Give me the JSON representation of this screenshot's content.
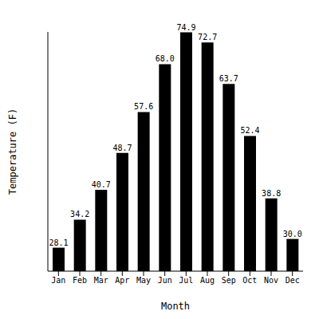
{
  "chart_data": {
    "type": "bar",
    "x_label": "Month",
    "y_label": "Temperature (F)",
    "categories": [
      "Jan",
      "Feb",
      "Mar",
      "Apr",
      "May",
      "Jun",
      "Jul",
      "Aug",
      "Sep",
      "Oct",
      "Nov",
      "Dec"
    ],
    "values": [
      28.1,
      34.2,
      40.7,
      48.7,
      57.6,
      68.0,
      74.9,
      72.7,
      63.7,
      52.4,
      38.8,
      30.0
    ],
    "value_labels": [
      "28.1",
      "34.2",
      "40.7",
      "48.7",
      "57.6",
      "68.0",
      "74.9",
      "72.7",
      "63.7",
      "52.4",
      "38.8",
      "30.0"
    ],
    "color": "#000000",
    "ylim": [
      23,
      75
    ],
    "data_labels": true,
    "tick_labels": "x",
    "grid": false
  }
}
